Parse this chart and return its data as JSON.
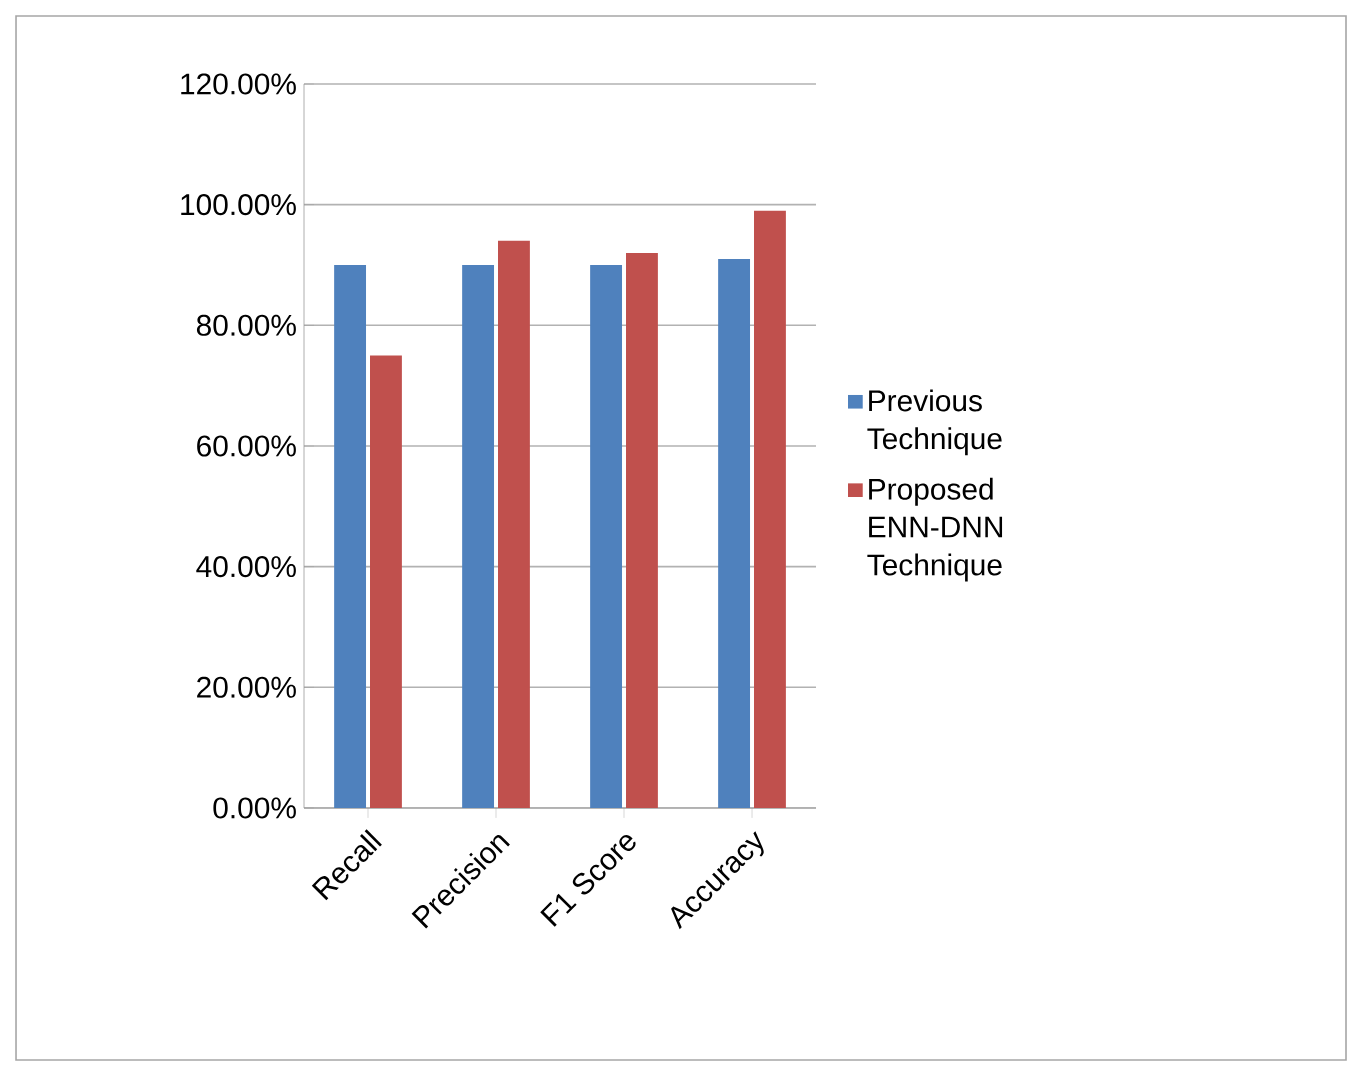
{
  "chart_data": {
    "type": "bar",
    "categories": [
      "Recall",
      "Precision",
      "F1 Score",
      "Accuracy"
    ],
    "series": [
      {
        "name": "Previous Technique",
        "color": "#4f81bd",
        "values": [
          90,
          90,
          90,
          91
        ]
      },
      {
        "name": "Proposed ENN-DNN Technique",
        "color": "#c0504d",
        "values": [
          75,
          94,
          92,
          99
        ]
      }
    ],
    "ylim": [
      0,
      120
    ],
    "yticks": [
      {
        "value": 0,
        "label": "0.00%"
      },
      {
        "value": 20,
        "label": "20.00%"
      },
      {
        "value": 40,
        "label": "40.00%"
      },
      {
        "value": 60,
        "label": "60.00%"
      },
      {
        "value": 80,
        "label": "80.00%"
      },
      {
        "value": 100,
        "label": "100.00%"
      },
      {
        "value": 120,
        "label": "120.00%"
      }
    ],
    "grid": "y",
    "legend": "right"
  }
}
